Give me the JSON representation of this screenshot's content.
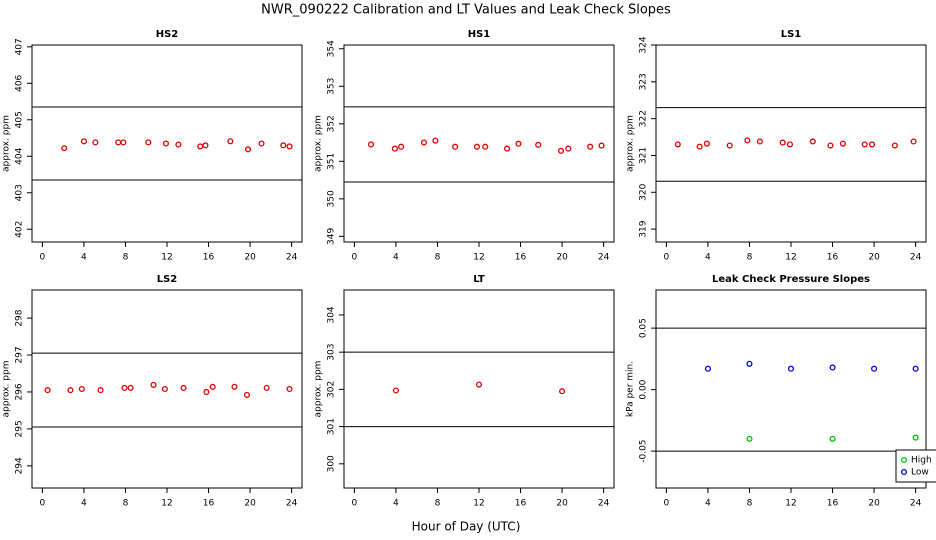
{
  "title": "NWR_090222  Calibration and LT Values and Leak Check Slopes",
  "xlabel": "Hour of Day (UTC)",
  "chart_data": [
    {
      "type": "scatter",
      "title": "HS2",
      "ylabel": "approx. ppm",
      "xlim": [
        -1,
        25
      ],
      "xticks": [
        0,
        4,
        8,
        12,
        16,
        20,
        24
      ],
      "ylim": [
        401.65,
        407.05
      ],
      "yticks": [
        402,
        403,
        404,
        405,
        406,
        407
      ],
      "hlines": [
        405.35,
        403.35
      ],
      "series": [
        {
          "color": "#e00000",
          "x": [
            2.1,
            4.0,
            5.1,
            7.3,
            7.8,
            10.2,
            11.9,
            13.1,
            15.2,
            15.7,
            18.1,
            19.8,
            21.1,
            23.2,
            23.8
          ],
          "values": [
            404.22,
            404.41,
            404.38,
            404.38,
            404.38,
            404.38,
            404.35,
            404.32,
            404.27,
            404.3,
            404.41,
            404.19,
            404.35,
            404.3,
            404.27
          ]
        }
      ]
    },
    {
      "type": "scatter",
      "title": "HS1",
      "ylabel": "approx. ppm",
      "xlim": [
        -1,
        25
      ],
      "xticks": [
        0,
        4,
        8,
        12,
        16,
        20,
        24
      ],
      "ylim": [
        348.85,
        354.1
      ],
      "yticks": [
        349,
        350,
        351,
        352,
        353,
        354
      ],
      "hlines": [
        352.45,
        350.45
      ],
      "series": [
        {
          "color": "#e00000",
          "x": [
            1.6,
            3.9,
            4.5,
            6.7,
            7.8,
            9.7,
            11.8,
            12.6,
            14.7,
            15.8,
            17.7,
            19.9,
            20.6,
            22.7,
            23.8
          ],
          "values": [
            351.45,
            351.34,
            351.39,
            351.5,
            351.55,
            351.39,
            351.39,
            351.39,
            351.34,
            351.47,
            351.44,
            351.28,
            351.34,
            351.39,
            351.42
          ]
        }
      ]
    },
    {
      "type": "scatter",
      "title": "LS1",
      "ylabel": "approx. ppm",
      "xlim": [
        -1,
        25
      ],
      "xticks": [
        0,
        4,
        8,
        12,
        16,
        20,
        24
      ],
      "ylim": [
        318.65,
        324.0
      ],
      "yticks": [
        319,
        320,
        321,
        322,
        323,
        324
      ],
      "hlines": [
        322.3,
        320.3
      ],
      "series": [
        {
          "color": "#e00000",
          "x": [
            1.1,
            3.2,
            3.9,
            6.1,
            7.8,
            9.0,
            11.2,
            11.9,
            14.1,
            15.8,
            17.0,
            19.1,
            19.8,
            22.0,
            23.8
          ],
          "values": [
            321.3,
            321.24,
            321.32,
            321.27,
            321.41,
            321.38,
            321.35,
            321.3,
            321.38,
            321.27,
            321.32,
            321.3,
            321.3,
            321.27,
            321.38
          ]
        }
      ]
    },
    {
      "type": "scatter",
      "title": "LS2",
      "ylabel": "approx. ppm",
      "xlim": [
        -1,
        25
      ],
      "xticks": [
        0,
        4,
        8,
        12,
        16,
        20,
        24
      ],
      "ylim": [
        293.4,
        298.76
      ],
      "yticks": [
        294,
        295,
        296,
        297,
        298
      ],
      "hlines": [
        297.05,
        295.05
      ],
      "series": [
        {
          "color": "#e00000",
          "x": [
            0.5,
            2.7,
            3.8,
            5.6,
            7.9,
            8.5,
            10.7,
            11.8,
            13.6,
            15.8,
            16.4,
            18.5,
            19.7,
            21.6,
            23.8
          ],
          "values": [
            296.05,
            296.05,
            296.08,
            296.05,
            296.11,
            296.11,
            296.19,
            296.08,
            296.11,
            296.0,
            296.14,
            296.14,
            295.92,
            296.11,
            296.08
          ]
        }
      ]
    },
    {
      "type": "scatter",
      "title": "LT",
      "ylabel": "approx. ppm",
      "xlim": [
        -1,
        25
      ],
      "xticks": [
        0,
        4,
        8,
        12,
        16,
        20,
        24
      ],
      "ylim": [
        299.35,
        304.67
      ],
      "yticks": [
        300,
        301,
        302,
        303,
        304
      ],
      "hlines": [
        303.0,
        301.0
      ],
      "series": [
        {
          "color": "#e00000",
          "x": [
            4.0,
            12.0,
            20.0
          ],
          "values": [
            301.97,
            302.13,
            301.95
          ]
        }
      ]
    },
    {
      "type": "scatter",
      "title": "Leak Check Pressure Slopes",
      "ylabel": "kPa per min.",
      "xlim": [
        -1,
        25
      ],
      "xticks": [
        0,
        4,
        8,
        12,
        16,
        20,
        24
      ],
      "ylim": [
        -0.08,
        0.081
      ],
      "yticks": [
        -0.05,
        {
          "value": 0,
          "label": "0.00"
        },
        0.05
      ],
      "hlines": [
        0.05,
        -0.05
      ],
      "legend": "bottom-right",
      "series": [
        {
          "name": "High",
          "color": "#00c000",
          "x": [
            8,
            16,
            24
          ],
          "values": [
            -0.04,
            -0.04,
            -0.039
          ]
        },
        {
          "name": "Low",
          "color": "#0000e0",
          "x": [
            4,
            8,
            12,
            16,
            20,
            24
          ],
          "values": [
            0.017,
            0.021,
            0.017,
            0.018,
            0.017,
            0.017
          ]
        }
      ]
    }
  ]
}
